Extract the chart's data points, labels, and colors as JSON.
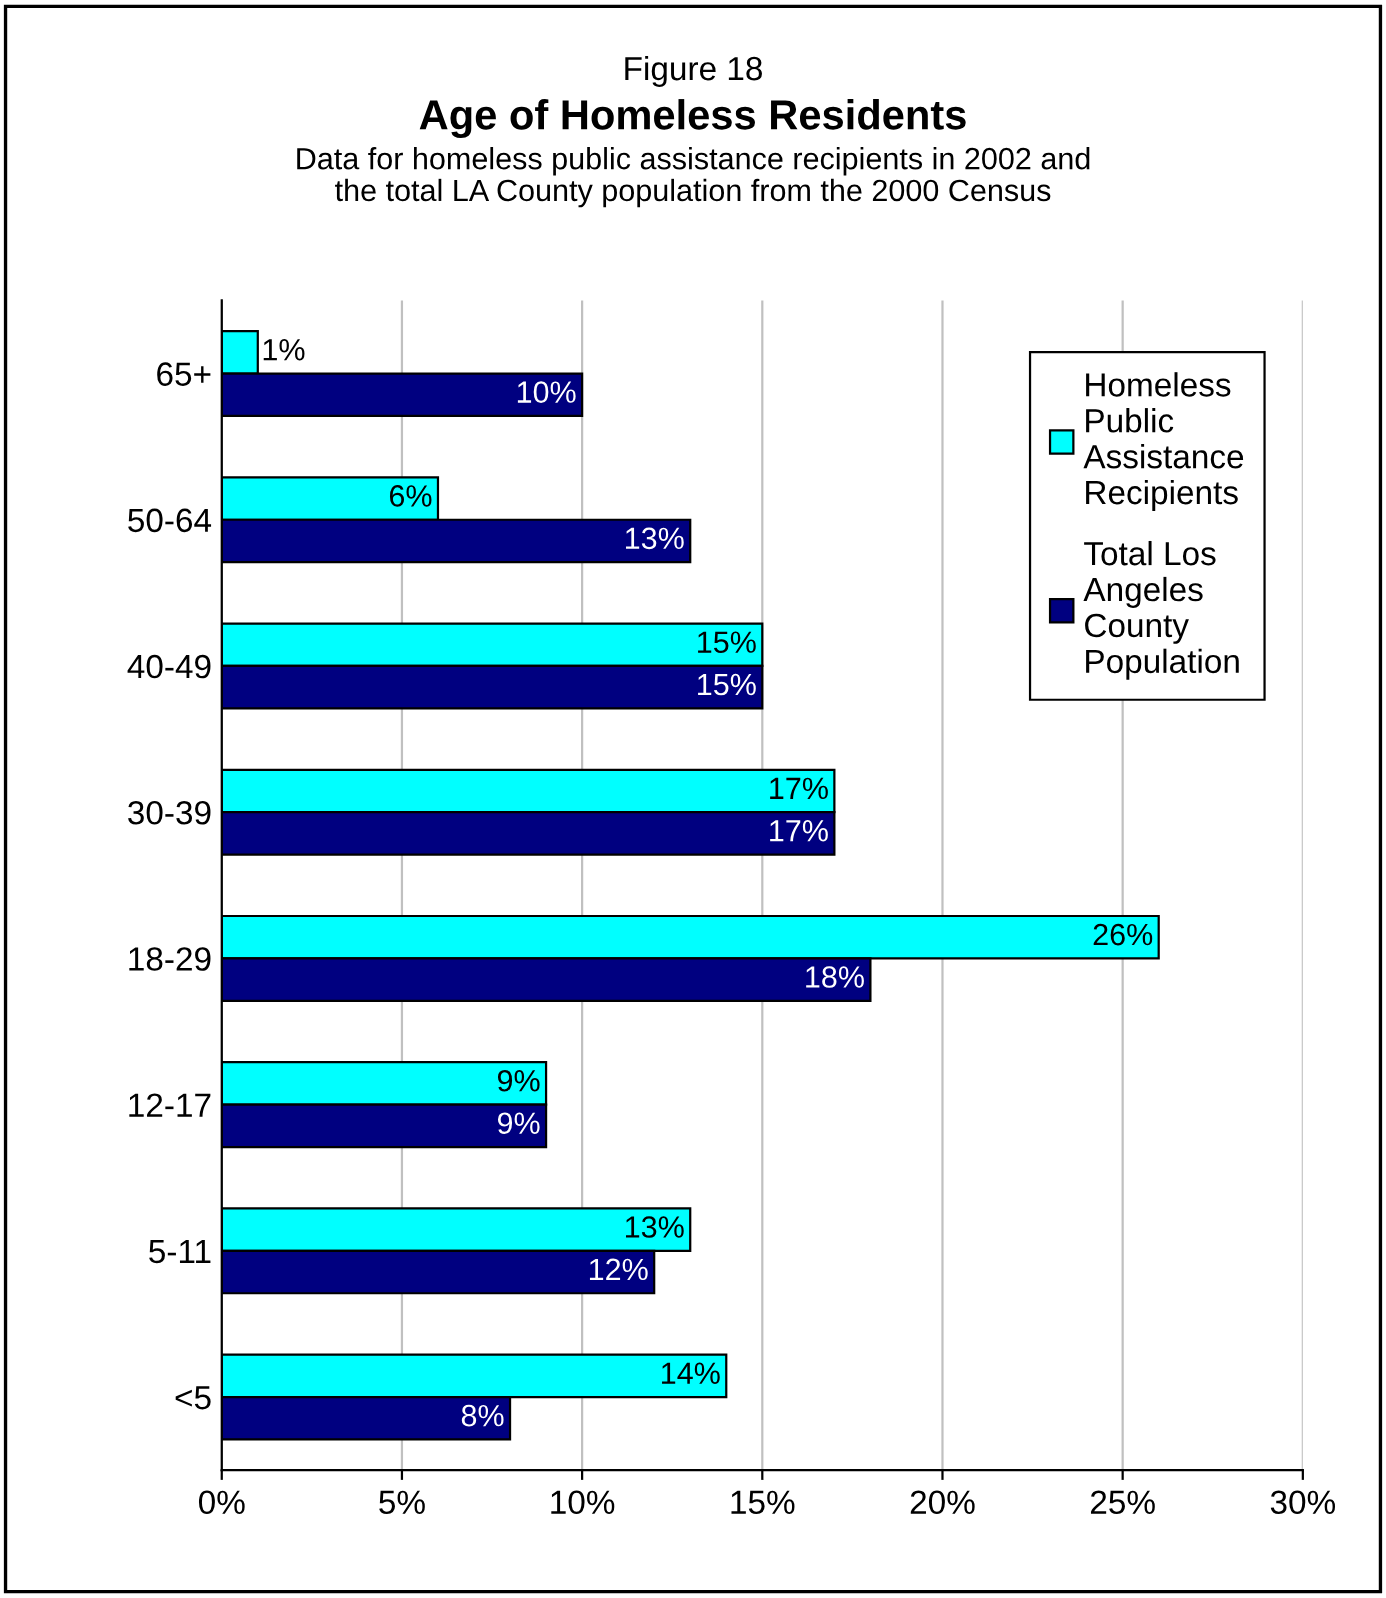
{
  "chart_data": {
    "type": "bar",
    "orientation": "horizontal",
    "title": "Age of Homeless Residents",
    "subtitle": "Data for homeless public assistance recipients in 2002 and\nthe total LA County population from the 2000 Census",
    "annotations": [
      "Figure 18"
    ],
    "categories": [
      "65+",
      "50-64",
      "40-49",
      "30-39",
      "18-29",
      "12-17",
      "5-11",
      "<5"
    ],
    "series": [
      {
        "name": "Homeless\nPublic\nAssistance\nRecipients",
        "color": "#00ffff",
        "values": [
          1,
          6,
          15,
          17,
          26,
          9,
          13,
          14
        ],
        "value_labels": [
          "1%",
          "6%",
          "15%",
          "17%",
          "26%",
          "9%",
          "13%",
          "14%"
        ]
      },
      {
        "name": "Total Los\nAngeles\nCounty\nPopulation",
        "color": "#000080",
        "values": [
          10,
          13,
          15,
          17,
          18,
          9,
          12,
          8
        ],
        "value_labels": [
          "10%",
          "13%",
          "15%",
          "17%",
          "18%",
          "9%",
          "12%",
          "8%"
        ]
      }
    ],
    "xlim": [
      0,
      30
    ],
    "xticks": [
      {
        "value": 0,
        "label": "0%"
      },
      {
        "value": 5,
        "label": "5%"
      },
      {
        "value": 10,
        "label": "10%"
      },
      {
        "value": 15,
        "label": "15%"
      },
      {
        "value": 20,
        "label": "20%"
      },
      {
        "value": 25,
        "label": "25%"
      },
      {
        "value": 30,
        "label": "30%"
      }
    ],
    "grid": "x",
    "legend": "top right"
  }
}
